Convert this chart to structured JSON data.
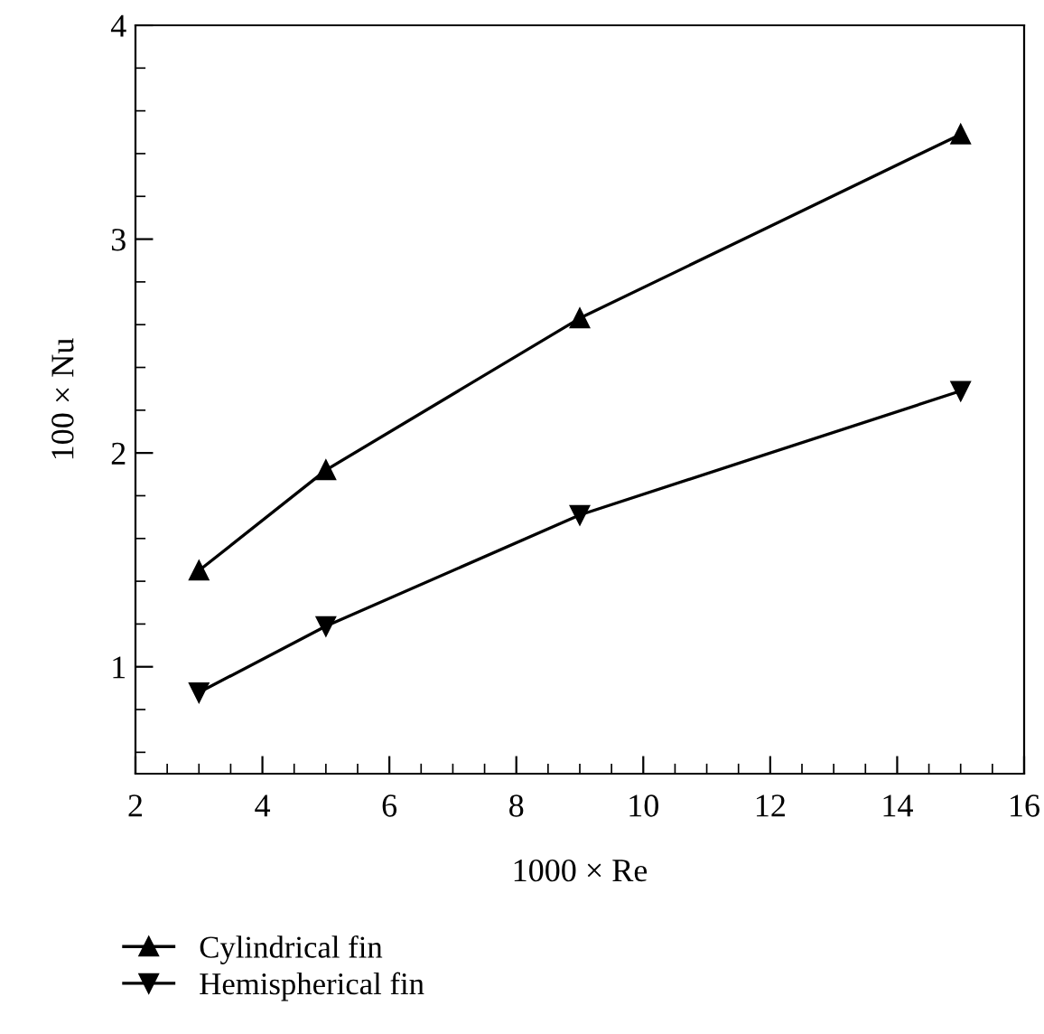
{
  "chart_data": {
    "type": "line",
    "xlabel": "1000 × Re",
    "ylabel": "100 × Nu",
    "x": [
      3,
      5,
      9,
      15
    ],
    "series": [
      {
        "name": "Cylindrical fin",
        "color": "#000000",
        "marker": "triangle",
        "values": [
          1.45,
          1.92,
          2.63,
          3.49
        ]
      },
      {
        "name": "Hemispherical fin",
        "color": "#000000",
        "marker": "triangle_down",
        "values": [
          0.88,
          1.19,
          1.71,
          2.29
        ]
      }
    ],
    "xlim": [
      2,
      16
    ],
    "xticks": [
      2,
      4,
      6,
      8,
      10,
      12,
      14,
      16
    ],
    "ylim": [
      0.5,
      4
    ],
    "yticks": [
      1,
      2,
      3,
      4
    ],
    "grid": false,
    "legend": "bottom",
    "line_style": "solid"
  }
}
